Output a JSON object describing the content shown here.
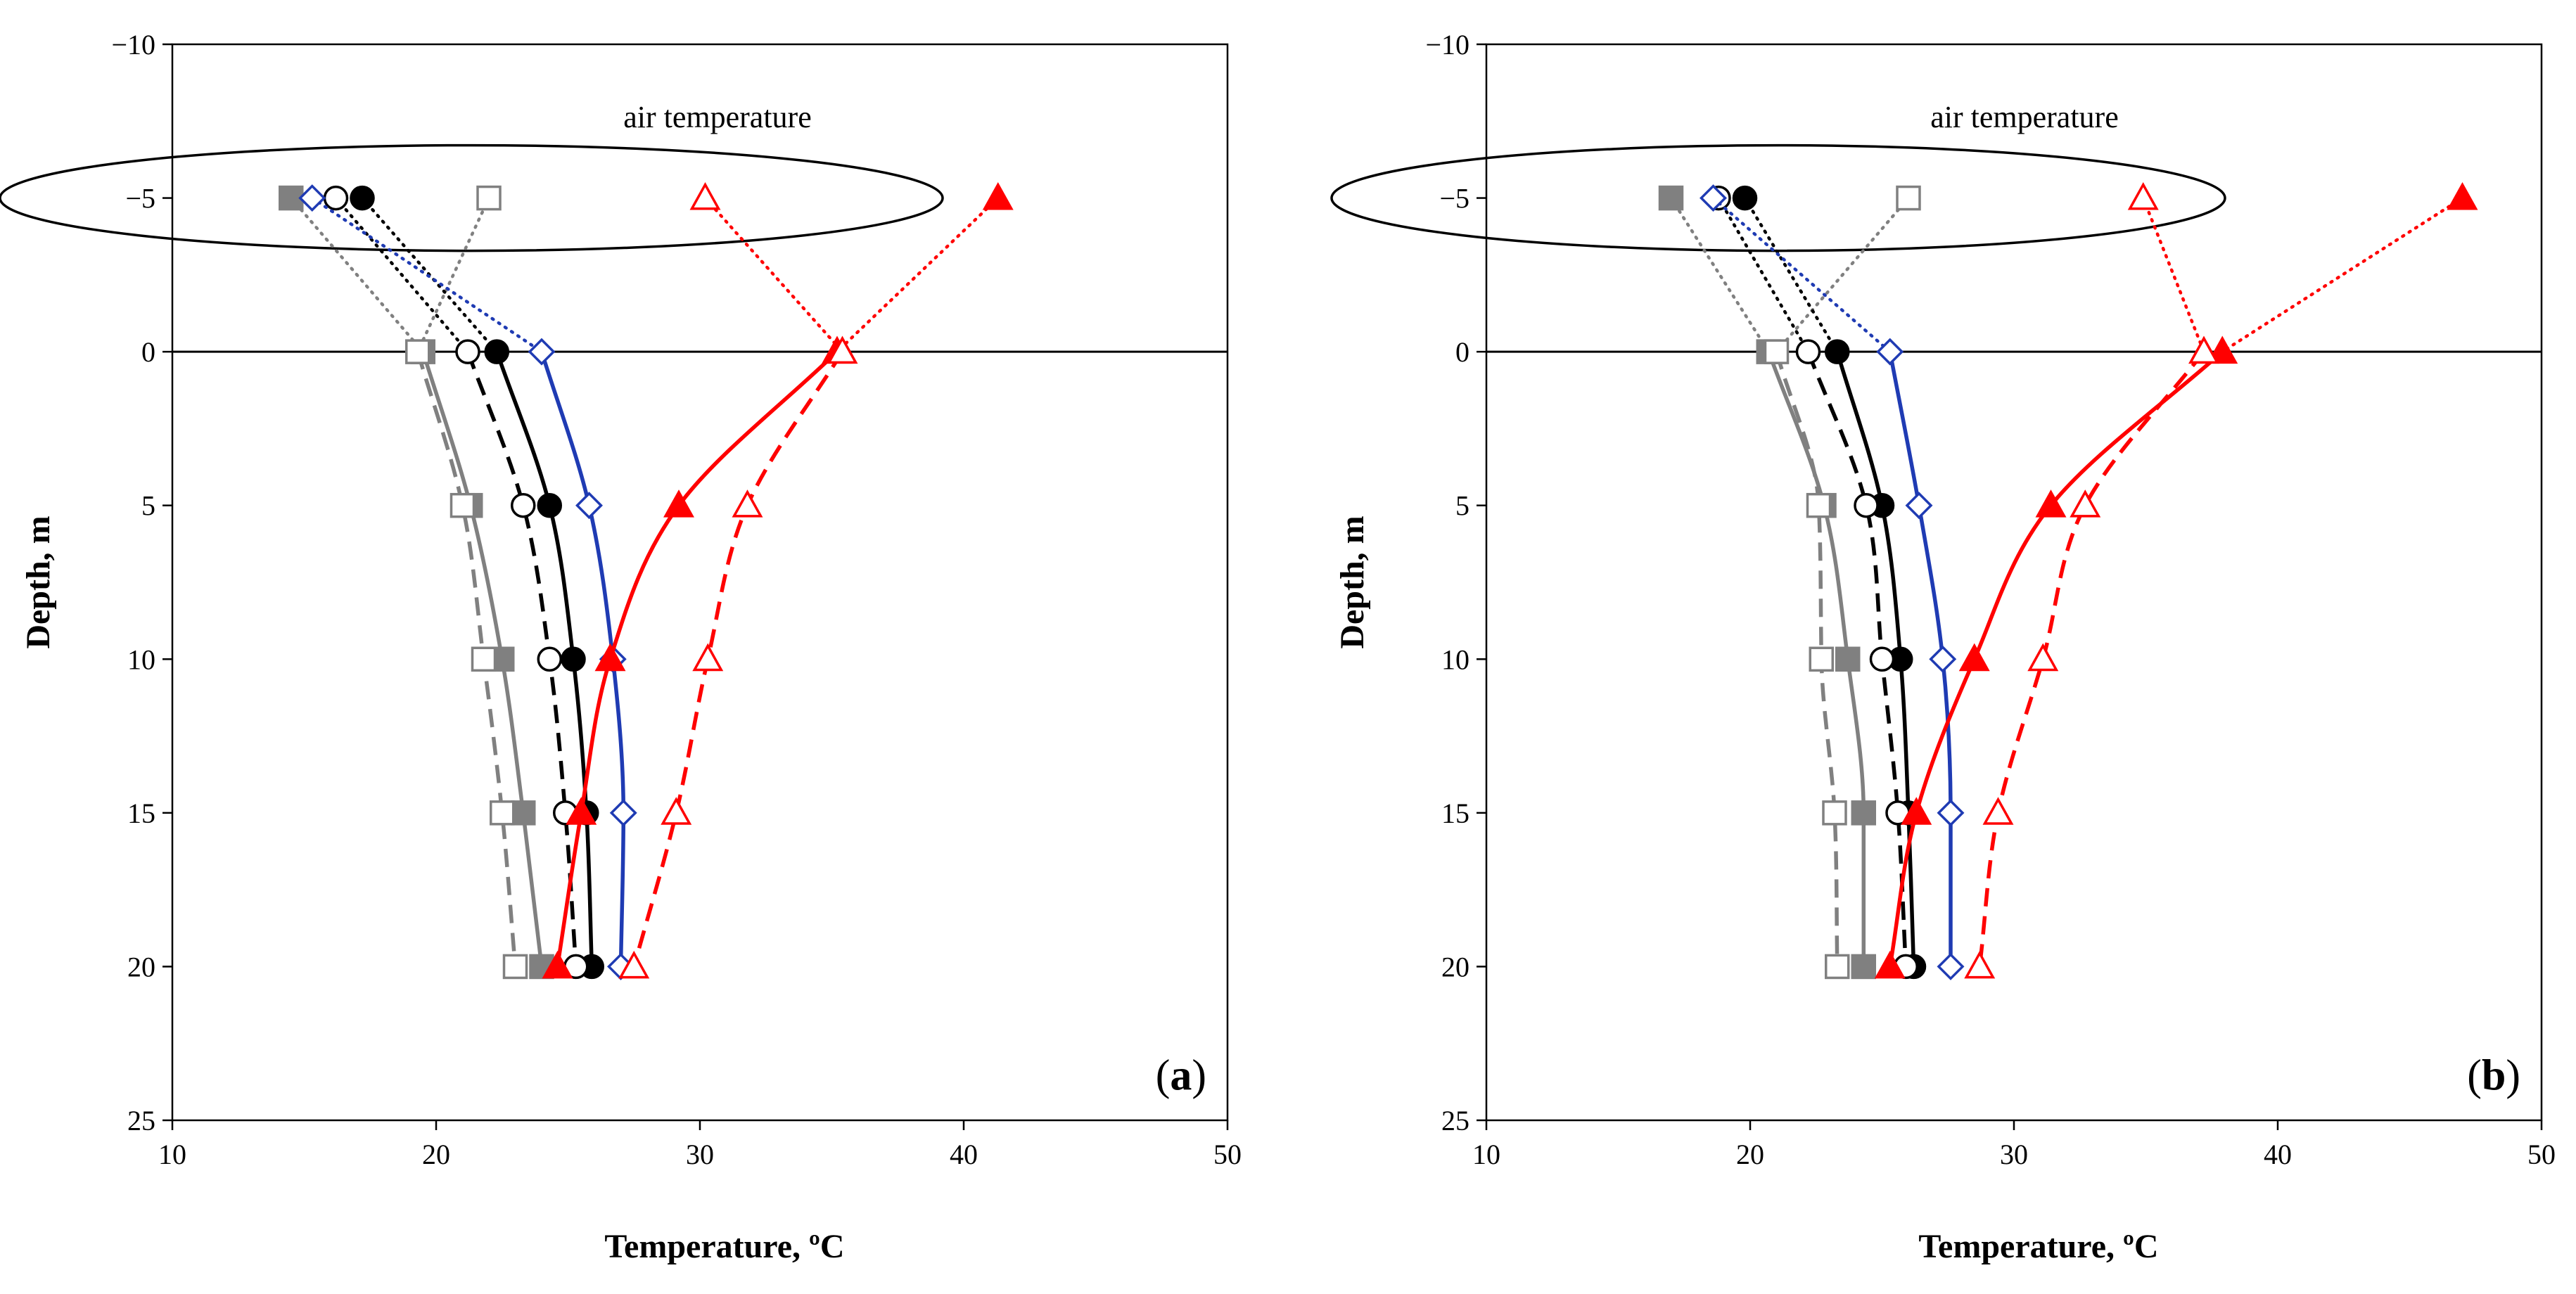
{
  "chart_data": [
    {
      "type": "line",
      "panel_label": "(a)",
      "xlabel": "Temperature, ºC",
      "ylabel": "Depth, m",
      "xlim": [
        10,
        50
      ],
      "ylim": [
        -10,
        25
      ],
      "y_inverted": true,
      "x_ticks": [
        "10",
        "20",
        "30",
        "40",
        "50"
      ],
      "y_ticks": [
        "−10",
        "−5",
        "0",
        "5",
        "10",
        "15",
        "20",
        "25"
      ],
      "annotation": "air temperature",
      "grid": false,
      "reference_line_y": 0,
      "series": [
        {
          "color": "#808080",
          "marker": "square-filled",
          "style": "solid",
          "points": [
            [
              14.5,
              -5
            ],
            [
              19.5,
              0
            ],
            [
              21.3,
              5
            ],
            [
              22.5,
              10
            ],
            [
              23.3,
              15
            ],
            [
              24.0,
              20
            ]
          ]
        },
        {
          "color": "#808080",
          "marker": "square-open",
          "style": "dashed",
          "points": [
            [
              22.0,
              -5
            ],
            [
              19.3,
              0
            ],
            [
              21.0,
              5
            ],
            [
              21.8,
              10
            ],
            [
              22.5,
              15
            ],
            [
              23.0,
              20
            ]
          ]
        },
        {
          "color": "#000000",
          "marker": "circle-filled",
          "style": "solid",
          "points": [
            [
              17.2,
              -5
            ],
            [
              22.3,
              0
            ],
            [
              24.3,
              5
            ],
            [
              25.2,
              10
            ],
            [
              25.7,
              15
            ],
            [
              25.9,
              20
            ]
          ]
        },
        {
          "color": "#000000",
          "marker": "circle-open",
          "style": "dashed",
          "points": [
            [
              16.2,
              -5
            ],
            [
              21.2,
              0
            ],
            [
              23.3,
              5
            ],
            [
              24.3,
              10
            ],
            [
              24.9,
              15
            ],
            [
              25.3,
              20
            ]
          ]
        },
        {
          "color": "#1f3bb3",
          "marker": "diamond-open",
          "style": "solid",
          "points": [
            [
              15.3,
              -5
            ],
            [
              24.0,
              0
            ],
            [
              25.8,
              5
            ],
            [
              26.7,
              10
            ],
            [
              27.1,
              15
            ],
            [
              27.0,
              20
            ]
          ]
        },
        {
          "color": "#ff0000",
          "marker": "triangle-filled",
          "style": "solid",
          "points": [
            [
              41.3,
              -5
            ],
            [
              35.2,
              0
            ],
            [
              29.2,
              5
            ],
            [
              26.6,
              10
            ],
            [
              25.5,
              15
            ],
            [
              24.6,
              20
            ]
          ]
        },
        {
          "color": "#ff0000",
          "marker": "triangle-open",
          "style": "dashed",
          "points": [
            [
              30.2,
              -5
            ],
            [
              35.4,
              0
            ],
            [
              31.8,
              5
            ],
            [
              30.3,
              10
            ],
            [
              29.1,
              15
            ],
            [
              27.5,
              20
            ]
          ]
        }
      ]
    },
    {
      "type": "line",
      "panel_label": "(b)",
      "xlabel": "Temperature, ºC",
      "ylabel": "Depth, m",
      "xlim": [
        10,
        50
      ],
      "ylim": [
        -10,
        25
      ],
      "y_inverted": true,
      "x_ticks": [
        "10",
        "20",
        "30",
        "40",
        "50"
      ],
      "y_ticks": [
        "−10",
        "−5",
        "0",
        "5",
        "10",
        "15",
        "20",
        "25"
      ],
      "annotation": "air temperature",
      "grid": false,
      "reference_line_y": 0,
      "series": [
        {
          "color": "#808080",
          "marker": "square-filled",
          "style": "solid",
          "points": [
            [
              17.0,
              -5
            ],
            [
              20.7,
              0
            ],
            [
              22.8,
              5
            ],
            [
              23.7,
              10
            ],
            [
              24.3,
              15
            ],
            [
              24.3,
              20
            ]
          ]
        },
        {
          "color": "#808080",
          "marker": "square-open",
          "style": "dashed",
          "points": [
            [
              26.0,
              -5
            ],
            [
              21.0,
              0
            ],
            [
              22.6,
              5
            ],
            [
              22.7,
              10
            ],
            [
              23.2,
              15
            ],
            [
              23.3,
              20
            ]
          ]
        },
        {
          "color": "#000000",
          "marker": "circle-filled",
          "style": "solid",
          "points": [
            [
              19.8,
              -5
            ],
            [
              23.3,
              0
            ],
            [
              25.0,
              5
            ],
            [
              25.7,
              10
            ],
            [
              26.0,
              15
            ],
            [
              26.2,
              20
            ]
          ]
        },
        {
          "color": "#000000",
          "marker": "circle-open",
          "style": "dashed",
          "points": [
            [
              18.8,
              -5
            ],
            [
              22.2,
              0
            ],
            [
              24.4,
              5
            ],
            [
              25.0,
              10
            ],
            [
              25.6,
              15
            ],
            [
              25.9,
              20
            ]
          ]
        },
        {
          "color": "#1f3bb3",
          "marker": "diamond-open",
          "style": "solid",
          "points": [
            [
              18.6,
              -5
            ],
            [
              25.3,
              0
            ],
            [
              26.4,
              5
            ],
            [
              27.3,
              10
            ],
            [
              27.6,
              15
            ],
            [
              27.6,
              20
            ]
          ]
        },
        {
          "color": "#ff0000",
          "marker": "triangle-filled",
          "style": "solid",
          "points": [
            [
              47.0,
              -5
            ],
            [
              37.9,
              0
            ],
            [
              31.4,
              5
            ],
            [
              28.5,
              10
            ],
            [
              26.3,
              15
            ],
            [
              25.3,
              20
            ]
          ]
        },
        {
          "color": "#ff0000",
          "marker": "triangle-open",
          "style": "dashed",
          "points": [
            [
              34.9,
              -5
            ],
            [
              37.2,
              0
            ],
            [
              32.7,
              5
            ],
            [
              31.1,
              10
            ],
            [
              29.4,
              15
            ],
            [
              28.7,
              20
            ]
          ]
        }
      ]
    }
  ]
}
